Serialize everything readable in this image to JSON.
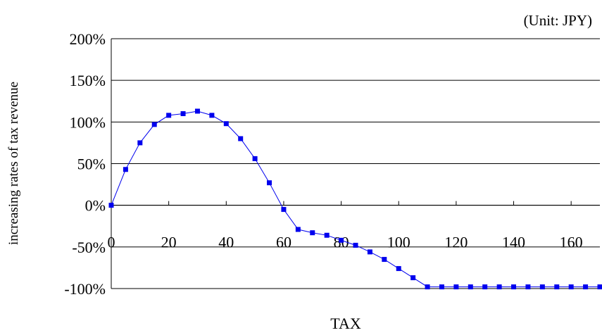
{
  "chart_data": {
    "type": "line",
    "title": "",
    "unit_note": "(Unit: JPY)",
    "xlabel": "TAX",
    "ylabel": "increasing rates of tax revenue",
    "xlim": [
      0,
      170
    ],
    "ylim": [
      -1.0,
      2.0
    ],
    "x_ticks": [
      0,
      20,
      40,
      60,
      80,
      100,
      120,
      140,
      160
    ],
    "y_ticks": [
      -1.0,
      -0.5,
      0,
      0.5,
      1.0,
      1.5,
      2.0
    ],
    "y_tick_labels": [
      "-100%",
      "-50%",
      "0%",
      "50%",
      "100%",
      "150%",
      "200%"
    ],
    "x_tick_labels": [
      "0",
      "20",
      "40",
      "60",
      "80",
      "100",
      "120",
      "140",
      "160"
    ],
    "grid": "horizontal",
    "legend": "none",
    "colors": {
      "series": "#0000ee",
      "grid": "#000000"
    },
    "series": [
      {
        "marker": "square",
        "x": [
          0,
          5,
          10,
          15,
          20,
          25,
          30,
          35,
          40,
          45,
          50,
          55,
          60,
          65,
          70,
          75,
          80,
          85,
          90,
          95,
          100,
          105,
          110,
          115,
          120,
          125,
          130,
          135,
          140,
          145,
          150,
          155,
          160,
          165,
          170
        ],
        "y": [
          0.0,
          0.43,
          0.75,
          0.97,
          1.08,
          1.1,
          1.13,
          1.08,
          0.98,
          0.8,
          0.56,
          0.27,
          -0.05,
          -0.29,
          -0.33,
          -0.36,
          -0.42,
          -0.48,
          -0.56,
          -0.65,
          -0.76,
          -0.87,
          -0.98,
          -0.98,
          -0.98,
          -0.98,
          -0.98,
          -0.98,
          -0.98,
          -0.98,
          -0.98,
          -0.98,
          -0.98,
          -0.98,
          -0.98
        ]
      }
    ]
  }
}
